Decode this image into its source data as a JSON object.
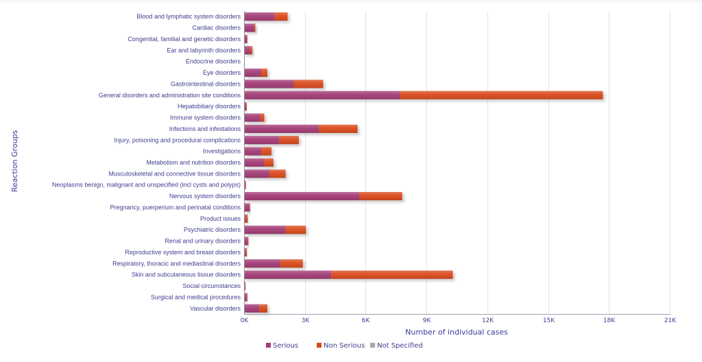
{
  "chart_data": {
    "type": "bar",
    "orientation": "horizontal",
    "stacked": true,
    "title": "",
    "xlabel": "Number of individual cases",
    "ylabel": "Reaction Groups",
    "xlim": [
      0,
      21000
    ],
    "xticks": [
      0,
      3000,
      6000,
      9000,
      12000,
      15000,
      18000,
      21000
    ],
    "xtick_labels": [
      "0K",
      "3K",
      "6K",
      "9K",
      "12K",
      "15K",
      "18K",
      "21K"
    ],
    "grid": true,
    "legend_position": "bottom",
    "categories": [
      "Blood and lymphatic system disorders",
      "Cardiac disorders",
      "Congenital, familial and genetic disorders",
      "Ear and labyrinth disorders",
      "Endocrine disorders",
      "Eye disorders",
      "Gastrointestinal disorders",
      "General disorders and administration site conditions",
      "Hepatobiliary disorders",
      "Immune system disorders",
      "Infections and infestations",
      "Injury, poisoning and procedural complications",
      "Investigations",
      "Metabolism and nutrition disorders",
      "Musculoskeletal and connective tissue disorders",
      "Neoplasms benign, malignant and unspecified (incl cysts and polyps)",
      "Nervous system disorders",
      "Pregnancy, puerperium and perinatal conditions",
      "Product issues",
      "Psychiatric disorders",
      "Renal and urinary disorders",
      "Reproductive system and breast disorders",
      "Respiratory, thoracic and mediastinal disorders",
      "Skin and subcutaneous tissue disorders",
      "Social circumstances",
      "Surgical and medical procedures",
      "Vascular disorders"
    ],
    "series": [
      {
        "name": "Serious",
        "color": "#a23a75",
        "values": [
          1500,
          500,
          130,
          300,
          30,
          850,
          2450,
          7700,
          100,
          800,
          3700,
          1750,
          850,
          1000,
          1250,
          60,
          5700,
          260,
          80,
          2050,
          180,
          80,
          1800,
          4300,
          70,
          130,
          750
        ]
      },
      {
        "name": "Non Serious",
        "color": "#d9481a",
        "values": [
          650,
          60,
          20,
          110,
          0,
          300,
          1450,
          10000,
          20,
          200,
          1900,
          950,
          500,
          450,
          800,
          10,
          2100,
          20,
          100,
          1000,
          20,
          60,
          1100,
          6000,
          0,
          20,
          400
        ]
      },
      {
        "name": "Not Specified",
        "color": "#a8a8a8",
        "values": [
          0,
          0,
          0,
          0,
          0,
          0,
          0,
          0,
          0,
          0,
          0,
          0,
          0,
          0,
          0,
          0,
          0,
          0,
          0,
          0,
          0,
          0,
          0,
          0,
          0,
          0,
          0
        ]
      }
    ]
  }
}
